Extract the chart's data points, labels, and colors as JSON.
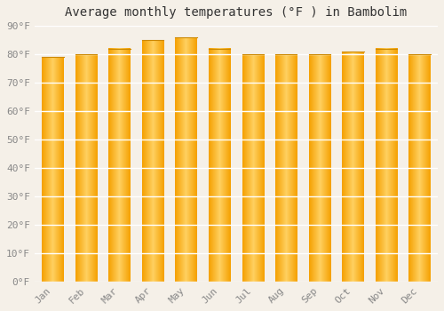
{
  "title": "Average monthly temperatures (°F ) in Bambolim",
  "months": [
    "Jan",
    "Feb",
    "Mar",
    "Apr",
    "May",
    "Jun",
    "Jul",
    "Aug",
    "Sep",
    "Oct",
    "Nov",
    "Dec"
  ],
  "values": [
    79,
    80,
    82,
    85,
    86,
    82,
    80,
    80,
    80,
    81,
    82,
    80
  ],
  "grad_left": "#F5A000",
  "grad_right": "#FFD060",
  "ylim": [
    0,
    90
  ],
  "yticks": [
    0,
    10,
    20,
    30,
    40,
    50,
    60,
    70,
    80,
    90
  ],
  "ytick_labels": [
    "0°F",
    "10°F",
    "20°F",
    "30°F",
    "40°F",
    "50°F",
    "60°F",
    "70°F",
    "80°F",
    "90°F"
  ],
  "bg_color": "#F5F0E8",
  "grid_color": "#FFFFFF",
  "title_fontsize": 10,
  "tick_fontsize": 8,
  "bar_width": 0.65
}
